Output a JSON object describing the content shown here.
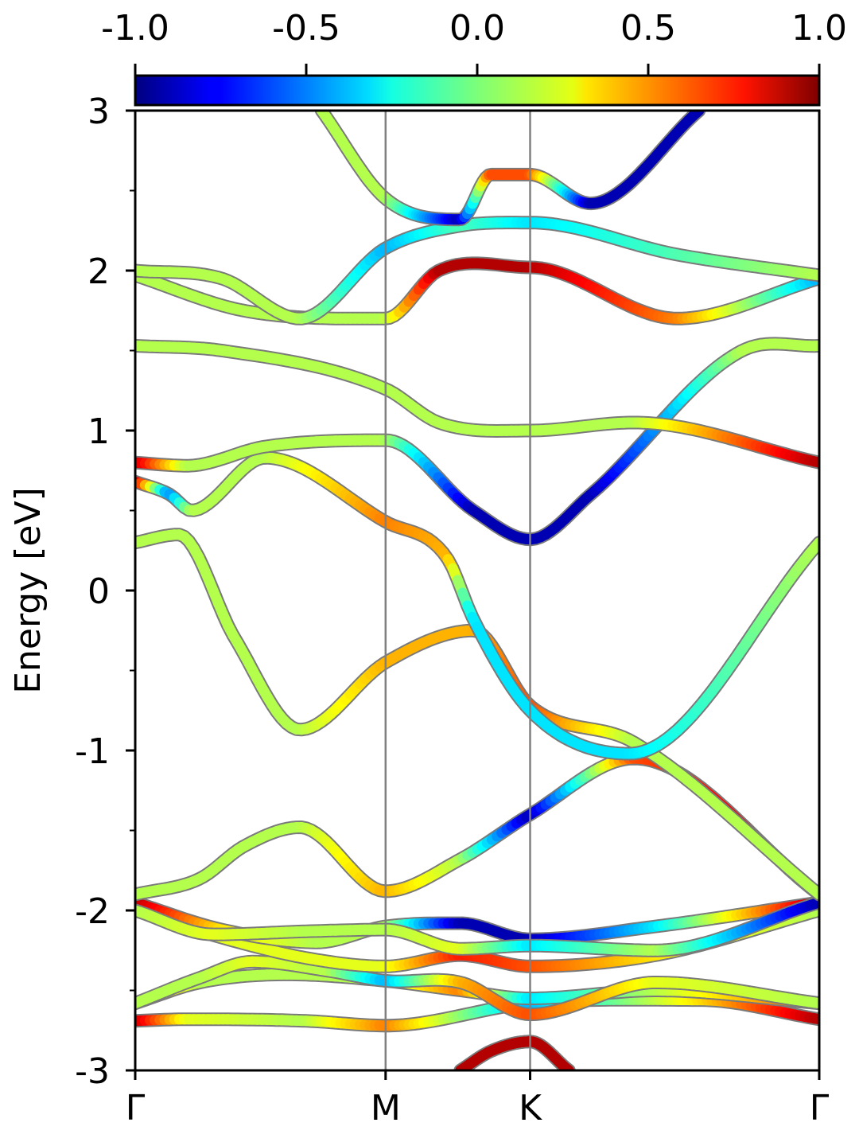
{
  "chart_data": {
    "type": "line",
    "ylabel": "Energy [eV]",
    "ylim": [
      -3,
      3
    ],
    "yticks": [
      "3",
      "2",
      "1",
      "0",
      "-1",
      "-2",
      "-3"
    ],
    "ytick_values": [
      3,
      2,
      1,
      0,
      -1,
      -2,
      -3
    ],
    "kpath_labels": [
      "Γ",
      "M",
      "K",
      "Γ"
    ],
    "kpath_positions": [
      0,
      0.5774,
      0.9107,
      1.5774
    ],
    "colorbar": {
      "colormap": "jet",
      "range": [
        -1.0,
        1.0
      ],
      "tick_labels": [
        "-1.0",
        "-0.5",
        "0.0",
        "0.5",
        "1.0"
      ],
      "tick_values": [
        -1.0,
        -0.5,
        0.0,
        0.5,
        1.0
      ]
    },
    "series": [
      {
        "x": [
          0,
          0.12,
          0.39,
          0.58,
          0.9107,
          1.3,
          1.5774
        ],
        "y": [
          -2.69,
          -2.68,
          -2.69,
          -2.72,
          -2.58,
          -2.56,
          -2.68
        ],
        "c": [
          0.9,
          0.2,
          0.1,
          0.5,
          -0.4,
          0.3,
          0.9
        ]
      },
      {
        "x": [
          0,
          0.15,
          0.35,
          0.5774,
          0.75,
          0.9107,
          1.2,
          1.5774
        ],
        "y": [
          -2.58,
          -2.45,
          -2.4,
          -2.44,
          -2.5,
          -2.55,
          -2.5,
          -2.58
        ],
        "c": [
          0.5,
          0.1,
          0.1,
          0.1,
          0.5,
          -0.3,
          0.1,
          0.6
        ]
      },
      {
        "x": [
          0,
          0.15,
          0.27,
          0.45,
          0.5774,
          0.75,
          0.9107,
          1.2,
          1.5774
        ],
        "y": [
          -2.58,
          -2.42,
          -2.32,
          -2.38,
          -2.44,
          -2.45,
          -2.65,
          -2.45,
          -2.58
        ],
        "c": [
          0.1,
          0.1,
          0.2,
          0.1,
          -0.4,
          0.4,
          0.6,
          0.2,
          0.1
        ]
      },
      {
        "x": [
          0,
          0.2,
          0.4,
          0.5774,
          0.75,
          0.9107,
          1.2,
          1.5774
        ],
        "y": [
          -2.0,
          -2.17,
          -2.3,
          -2.35,
          -2.28,
          -2.35,
          -2.28,
          -2.0
        ],
        "c": [
          0.1,
          0.2,
          0.2,
          0.2,
          0.7,
          0.6,
          0.3,
          0.1
        ]
      },
      {
        "x": [
          0,
          0.2,
          0.42,
          0.5774,
          0.75,
          0.9107,
          1.2,
          1.5774
        ],
        "y": [
          -1.95,
          -2.12,
          -2.2,
          -2.1,
          -2.08,
          -2.18,
          -2.1,
          -1.95
        ],
        "c": [
          0.9,
          0.3,
          0.1,
          0.1,
          -0.9,
          -0.9,
          -0.3,
          0.9
        ]
      },
      {
        "x": [
          0,
          0.18,
          0.4,
          0.5774,
          0.75,
          0.9107,
          1.2,
          1.5774
        ],
        "y": [
          -2.0,
          -2.15,
          -2.13,
          -2.12,
          -2.24,
          -2.22,
          -2.25,
          -1.95
        ],
        "c": [
          0.1,
          0.2,
          0.1,
          0.1,
          0.2,
          -0.3,
          0.1,
          -0.9
        ]
      },
      {
        "x": [
          0,
          0.15,
          0.25,
          0.38,
          0.5774,
          0.75,
          0.9107,
          1.15,
          1.5774
        ],
        "y": [
          -1.9,
          -1.8,
          -1.6,
          -1.48,
          -1.88,
          -1.68,
          -1.4,
          -1.05,
          -1.9
        ],
        "c": [
          0.1,
          0.1,
          0.1,
          0.1,
          0.4,
          0.1,
          -0.9,
          0.6,
          0.9
        ]
      },
      {
        "x": [
          0,
          0.1,
          0.23,
          0.38,
          0.5774,
          0.78,
          0.9107,
          1.15,
          1.5774
        ],
        "y": [
          0.3,
          0.35,
          -0.3,
          -0.87,
          -0.45,
          -0.25,
          -0.72,
          -0.95,
          -1.9
        ],
        "c": [
          0.1,
          0.1,
          0.1,
          0.1,
          0.4,
          0.4,
          0.6,
          0.1,
          0.1
        ]
      },
      {
        "x": [
          0,
          0.08,
          0.13,
          0.3,
          0.5774,
          0.72,
          0.78,
          0.9107,
          1.14,
          1.5774
        ],
        "y": [
          0.68,
          0.6,
          0.5,
          0.83,
          0.43,
          0.2,
          -0.18,
          -0.75,
          -1.02,
          0.3
        ],
        "c": [
          0.9,
          -0.5,
          0.1,
          0.1,
          0.5,
          0.4,
          -0.3,
          -0.3,
          -0.3,
          0.1
        ]
      },
      {
        "x": [
          0,
          0.12,
          0.3,
          0.5774,
          0.78,
          0.9107,
          1.05,
          1.4,
          1.5774
        ],
        "y": [
          0.8,
          0.78,
          0.9,
          0.94,
          0.5,
          0.32,
          0.6,
          1.5,
          1.53
        ],
        "c": [
          0.9,
          0.1,
          0.1,
          0.1,
          -0.9,
          -0.9,
          -0.9,
          0.1,
          0.1
        ]
      },
      {
        "x": [
          0,
          0.2,
          0.5774,
          0.7,
          0.9107,
          1.15,
          1.5774
        ],
        "y": [
          1.53,
          1.5,
          1.26,
          1.05,
          1.0,
          1.05,
          0.8
        ],
        "c": [
          0.1,
          0.1,
          0.1,
          0.1,
          0.1,
          0.1,
          0.9
        ]
      },
      {
        "x": [
          0,
          0.25,
          0.5774,
          0.7,
          0.9107,
          1.25,
          1.5774
        ],
        "y": [
          1.97,
          1.75,
          1.7,
          2.0,
          2.02,
          1.7,
          1.95
        ],
        "c": [
          0.1,
          0.1,
          0.1,
          0.9,
          0.9,
          0.5,
          -0.4
        ]
      },
      {
        "x": [
          0,
          0.2,
          0.38,
          0.5774,
          0.75,
          0.9107,
          1.25,
          1.5774
        ],
        "y": [
          2.0,
          1.95,
          1.7,
          2.14,
          2.28,
          2.3,
          2.1,
          1.97
        ],
        "c": [
          0.1,
          0.1,
          0.1,
          -0.4,
          -0.1,
          -0.3,
          -0.1,
          0.1
        ]
      },
      {
        "x": [
          0.43,
          0.5774,
          0.75,
          0.82,
          0.9107,
          1.05,
          1.3
        ],
        "y": [
          3.0,
          2.45,
          2.32,
          2.6,
          2.6,
          2.42,
          3.0
        ],
        "c": [
          0.1,
          0.1,
          -0.9,
          0.6,
          0.6,
          -0.9,
          -0.9
        ]
      },
      {
        "x": [
          0.75,
          0.82,
          0.9107,
          1.0
        ],
        "y": [
          -3.0,
          -2.88,
          -2.82,
          -3.0
        ],
        "c": [
          0.9,
          0.9,
          0.9,
          0.9
        ]
      }
    ]
  }
}
